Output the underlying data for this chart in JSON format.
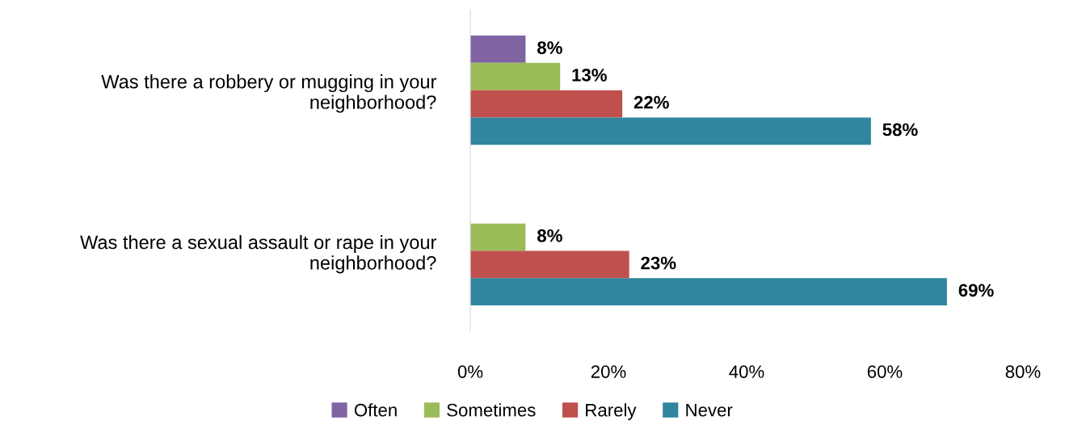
{
  "chart_data": {
    "type": "bar",
    "orientation": "horizontal",
    "categories": [
      "Was there a robbery or mugging in your\nneighborhood?",
      "Was there a sexual assault or rape in your\nneighborhood?"
    ],
    "series": [
      {
        "name": "Often",
        "color": "#8064a2",
        "values": [
          8,
          null
        ],
        "value_labels": [
          "8%",
          null
        ]
      },
      {
        "name": "Sometimes",
        "color": "#9bbb59",
        "values": [
          13,
          8
        ],
        "value_labels": [
          "13%",
          "8%"
        ]
      },
      {
        "name": "Rarely",
        "color": "#c0504d",
        "values": [
          22,
          23
        ],
        "value_labels": [
          "22%",
          "23%"
        ]
      },
      {
        "name": "Never",
        "color": "#31859c",
        "values": [
          58,
          69
        ],
        "value_labels": [
          "58%",
          "69%"
        ]
      }
    ],
    "xlim": [
      0,
      80
    ],
    "xticks": [
      {
        "value": 0,
        "label": "0%"
      },
      {
        "value": 20,
        "label": "20%"
      },
      {
        "value": 40,
        "label": "40%"
      },
      {
        "value": 60,
        "label": "60%"
      },
      {
        "value": 80,
        "label": "80%"
      }
    ],
    "grid": false,
    "legend": "bottom"
  }
}
